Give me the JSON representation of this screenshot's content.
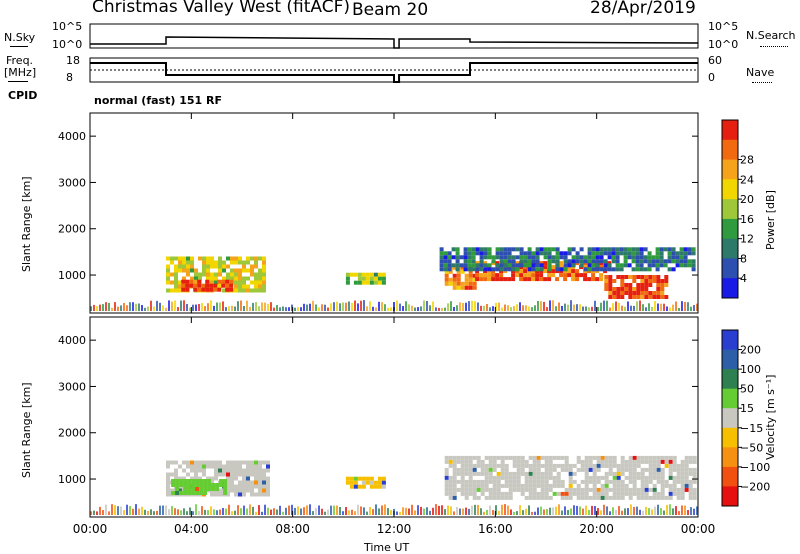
{
  "header": {
    "station": "Christmas Valley West (fitACF)",
    "beam": "Beam 20",
    "date": "28/Apr/2019"
  },
  "top_panels": {
    "nsky_label": "N.Sky",
    "nsearch_label": "N.Search",
    "noise_ticks": [
      "10^5",
      "10^0"
    ],
    "freq_label": "Freq.",
    "freq_unit": "[MHz]",
    "freq_ticks": [
      "18",
      "8"
    ],
    "nave_label": "Nave",
    "nave_ticks": [
      "60",
      "0"
    ],
    "cpid_label": "CPID",
    "cpid_text": "normal (fast) 151 RF"
  },
  "chart_data": [
    {
      "type": "heatmap",
      "name": "power",
      "ylabel": "Slant Range [km]",
      "xlabel": "",
      "xlim": [
        0,
        24
      ],
      "ylim": [
        180,
        4500
      ],
      "yticks": [
        "1000",
        "2000",
        "3000",
        "4000"
      ],
      "colorbar": {
        "label": "Power [dB]",
        "ticks": [
          "4",
          "8",
          "12",
          "16",
          "20",
          "24",
          "28"
        ],
        "colors": [
          "#1a1ae6",
          "#2c4fb0",
          "#2e7a6a",
          "#2f9a3e",
          "#9ec83a",
          "#f2d600",
          "#f4a31a",
          "#f26a10",
          "#e62010"
        ]
      },
      "regions": [
        {
          "t0": 3.0,
          "t1": 6.8,
          "r0": 650,
          "r1": 1400,
          "level": 0.6
        },
        {
          "t0": 3.6,
          "t1": 5.6,
          "r0": 700,
          "r1": 900,
          "level": 0.95
        },
        {
          "t0": 10.1,
          "t1": 11.6,
          "r0": 800,
          "r1": 1050,
          "level": 0.5
        },
        {
          "t0": 14.0,
          "t1": 15.2,
          "r0": 700,
          "r1": 1200,
          "level": 0.8
        },
        {
          "t0": 15.2,
          "t1": 20.5,
          "r0": 900,
          "r1": 1300,
          "level": 0.85
        },
        {
          "t0": 20.3,
          "t1": 22.8,
          "r0": 550,
          "r1": 1000,
          "level": 0.92
        },
        {
          "t0": 13.8,
          "t1": 23.9,
          "r0": 1100,
          "r1": 1600,
          "level": 0.25
        }
      ]
    },
    {
      "type": "heatmap",
      "name": "velocity",
      "ylabel": "Slant Range [km]",
      "xlabel": "Time UT",
      "xlim": [
        0,
        24
      ],
      "ylim": [
        180,
        4500
      ],
      "xticks": [
        "00:00",
        "04:00",
        "08:00",
        "12:00",
        "16:00",
        "20:00",
        "00:00"
      ],
      "yticks": [
        "1000",
        "2000",
        "3000",
        "4000"
      ],
      "colorbar": {
        "label": "Velocity [m s⁻¹]",
        "ticks": [
          "200",
          "100",
          "50",
          "15",
          "−15",
          "−50",
          "−100",
          "−200"
        ],
        "colors": [
          "#2a3fd0",
          "#2c5fa8",
          "#2e8050",
          "#66cc33",
          "#c8c8c0",
          "#f6c000",
          "#f69010",
          "#f25010",
          "#e61010"
        ]
      },
      "regions": [
        {
          "t0": 3.0,
          "t1": 7.0,
          "r0": 650,
          "r1": 1400,
          "color": "#c8c8c0"
        },
        {
          "t0": 3.2,
          "t1": 5.4,
          "r0": 700,
          "r1": 1000,
          "color": "#66cc33"
        },
        {
          "t0": 10.1,
          "t1": 11.6,
          "r0": 850,
          "r1": 1050,
          "color": "#f6c000"
        },
        {
          "t0": 14.0,
          "t1": 23.9,
          "r0": 600,
          "r1": 1500,
          "color": "#c8c8c0"
        }
      ]
    }
  ]
}
